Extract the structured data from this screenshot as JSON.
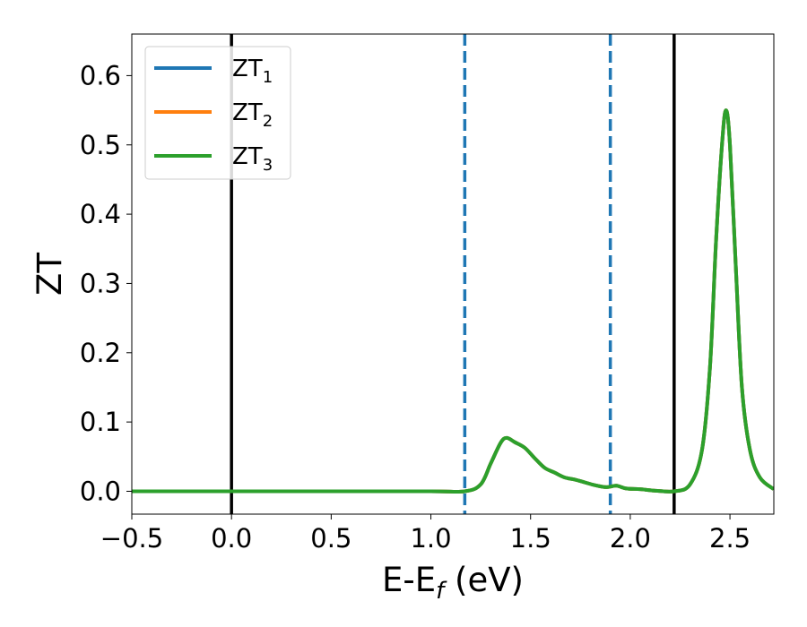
{
  "chart_data": {
    "type": "line",
    "title": "",
    "xlabel": "E-E",
    "xlabel_sub": "f",
    "xlabel_unit": " (eV)",
    "ylabel": "ZT",
    "xlim": [
      -0.5,
      2.72
    ],
    "ylim": [
      -0.033,
      0.66
    ],
    "grid": false,
    "legend_position": "top-left",
    "xticks": [
      {
        "value": -0.5,
        "label": "−0.5"
      },
      {
        "value": 0.0,
        "label": "0.0"
      },
      {
        "value": 0.5,
        "label": "0.5"
      },
      {
        "value": 1.0,
        "label": "1.0"
      },
      {
        "value": 1.5,
        "label": "1.5"
      },
      {
        "value": 2.0,
        "label": "2.0"
      },
      {
        "value": 2.5,
        "label": "2.5"
      }
    ],
    "yticks": [
      {
        "value": 0.0,
        "label": "0.0"
      },
      {
        "value": 0.1,
        "label": "0.1"
      },
      {
        "value": 0.2,
        "label": "0.2"
      },
      {
        "value": 0.3,
        "label": "0.3"
      },
      {
        "value": 0.4,
        "label": "0.4"
      },
      {
        "value": 0.5,
        "label": "0.5"
      },
      {
        "value": 0.6,
        "label": "0.6"
      }
    ],
    "vlines": [
      {
        "x": 0.0,
        "color": "#000000",
        "style": "solid"
      },
      {
        "x": 2.22,
        "color": "#000000",
        "style": "solid"
      },
      {
        "x": 1.17,
        "color": "#1f77b4",
        "style": "dashed"
      },
      {
        "x": 1.9,
        "color": "#1f77b4",
        "style": "dashed"
      }
    ],
    "series": [
      {
        "name": "ZT",
        "sub": "1",
        "color": "#1f77b4",
        "x": [
          -0.5,
          0.0,
          0.5,
          1.0,
          1.17,
          1.25,
          1.3,
          1.35,
          1.38,
          1.42,
          1.47,
          1.52,
          1.57,
          1.62,
          1.67,
          1.72,
          1.77,
          1.82,
          1.88,
          1.93,
          1.98,
          2.05,
          2.12,
          2.22,
          2.3,
          2.36,
          2.4,
          2.43,
          2.46,
          2.48,
          2.5,
          2.53,
          2.56,
          2.6,
          2.65,
          2.72
        ],
        "y": [
          0,
          0,
          0,
          0,
          0,
          0.01,
          0.04,
          0.07,
          0.077,
          0.071,
          0.063,
          0.048,
          0.034,
          0.027,
          0.02,
          0.017,
          0.013,
          0.009,
          0.006,
          0.008,
          0.004,
          0.003,
          0.001,
          0,
          0.01,
          0.06,
          0.18,
          0.36,
          0.5,
          0.55,
          0.5,
          0.32,
          0.15,
          0.06,
          0.02,
          0.003
        ]
      },
      {
        "name": "ZT",
        "sub": "2",
        "color": "#ff7f0e",
        "x": [
          -0.5,
          0.0,
          0.5,
          1.0,
          1.17,
          1.25,
          1.3,
          1.35,
          1.38,
          1.42,
          1.47,
          1.52,
          1.57,
          1.62,
          1.67,
          1.72,
          1.77,
          1.82,
          1.88,
          1.93,
          1.98,
          2.05,
          2.12,
          2.22,
          2.3,
          2.36,
          2.4,
          2.43,
          2.46,
          2.48,
          2.5,
          2.53,
          2.56,
          2.6,
          2.65,
          2.72
        ],
        "y": [
          0,
          0,
          0,
          0,
          0,
          0.01,
          0.04,
          0.07,
          0.077,
          0.071,
          0.063,
          0.048,
          0.034,
          0.027,
          0.02,
          0.017,
          0.013,
          0.009,
          0.006,
          0.008,
          0.004,
          0.003,
          0.001,
          0,
          0.01,
          0.06,
          0.18,
          0.36,
          0.5,
          0.55,
          0.5,
          0.32,
          0.15,
          0.06,
          0.02,
          0.003
        ]
      },
      {
        "name": "ZT",
        "sub": "3",
        "color": "#2ca02c",
        "x": [
          -0.5,
          0.0,
          0.5,
          1.0,
          1.17,
          1.25,
          1.3,
          1.35,
          1.38,
          1.42,
          1.47,
          1.52,
          1.57,
          1.62,
          1.67,
          1.72,
          1.77,
          1.82,
          1.88,
          1.93,
          1.98,
          2.05,
          2.12,
          2.22,
          2.3,
          2.36,
          2.4,
          2.43,
          2.46,
          2.48,
          2.5,
          2.53,
          2.56,
          2.6,
          2.65,
          2.72
        ],
        "y": [
          0,
          0,
          0,
          0,
          0,
          0.01,
          0.04,
          0.07,
          0.077,
          0.071,
          0.063,
          0.048,
          0.034,
          0.027,
          0.02,
          0.017,
          0.013,
          0.009,
          0.006,
          0.008,
          0.004,
          0.003,
          0.001,
          0,
          0.01,
          0.06,
          0.18,
          0.36,
          0.5,
          0.55,
          0.5,
          0.32,
          0.15,
          0.06,
          0.02,
          0.003
        ]
      }
    ]
  }
}
